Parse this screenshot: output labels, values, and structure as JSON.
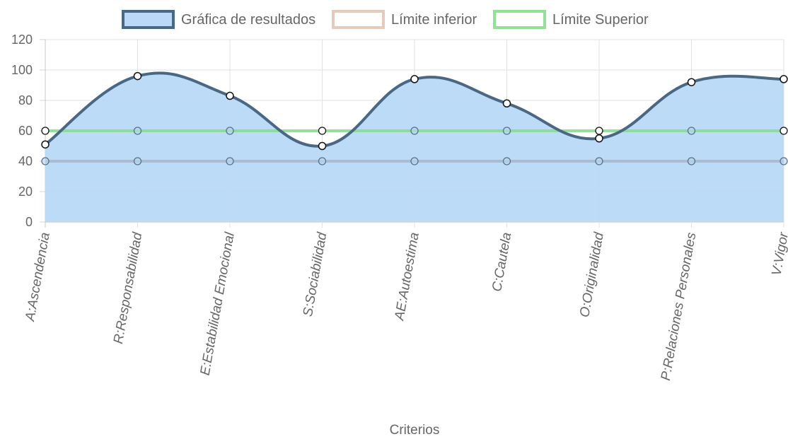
{
  "chart_data": {
    "type": "line",
    "categories": [
      "A:Ascendencia",
      "R:Responsabilidad",
      "E:Estabilidad Emocional",
      "S:Sociabilidad",
      "AE:Autoestima",
      "C:Cautela",
      "O:Originalidad",
      "P:Relaciones Personales",
      "V:Vigor"
    ],
    "series": [
      {
        "name": "Gráfica de resultados",
        "values": [
          51,
          96,
          83,
          50,
          94,
          78,
          55,
          92,
          94
        ],
        "line_color": "#4a6783",
        "fill_color": "#b8d9f7",
        "filled": true,
        "smooth": true
      },
      {
        "name": "Límite inferior",
        "values": [
          40,
          40,
          40,
          40,
          40,
          40,
          40,
          40,
          40
        ],
        "line_color": "#a9b6c9",
        "legend_color": "#e6cbbd",
        "filled": false
      },
      {
        "name": "Límite Superior",
        "values": [
          60,
          60,
          60,
          60,
          60,
          60,
          60,
          60,
          60
        ],
        "line_color": "#86d98f",
        "legend_color": "#90e393",
        "filled": false
      }
    ],
    "xlabel": "Criterios",
    "ylabel": "",
    "ylim": [
      0,
      120
    ],
    "yticks": [
      0,
      20,
      40,
      60,
      80,
      100,
      120
    ],
    "grid": true,
    "legend_position": "top"
  }
}
